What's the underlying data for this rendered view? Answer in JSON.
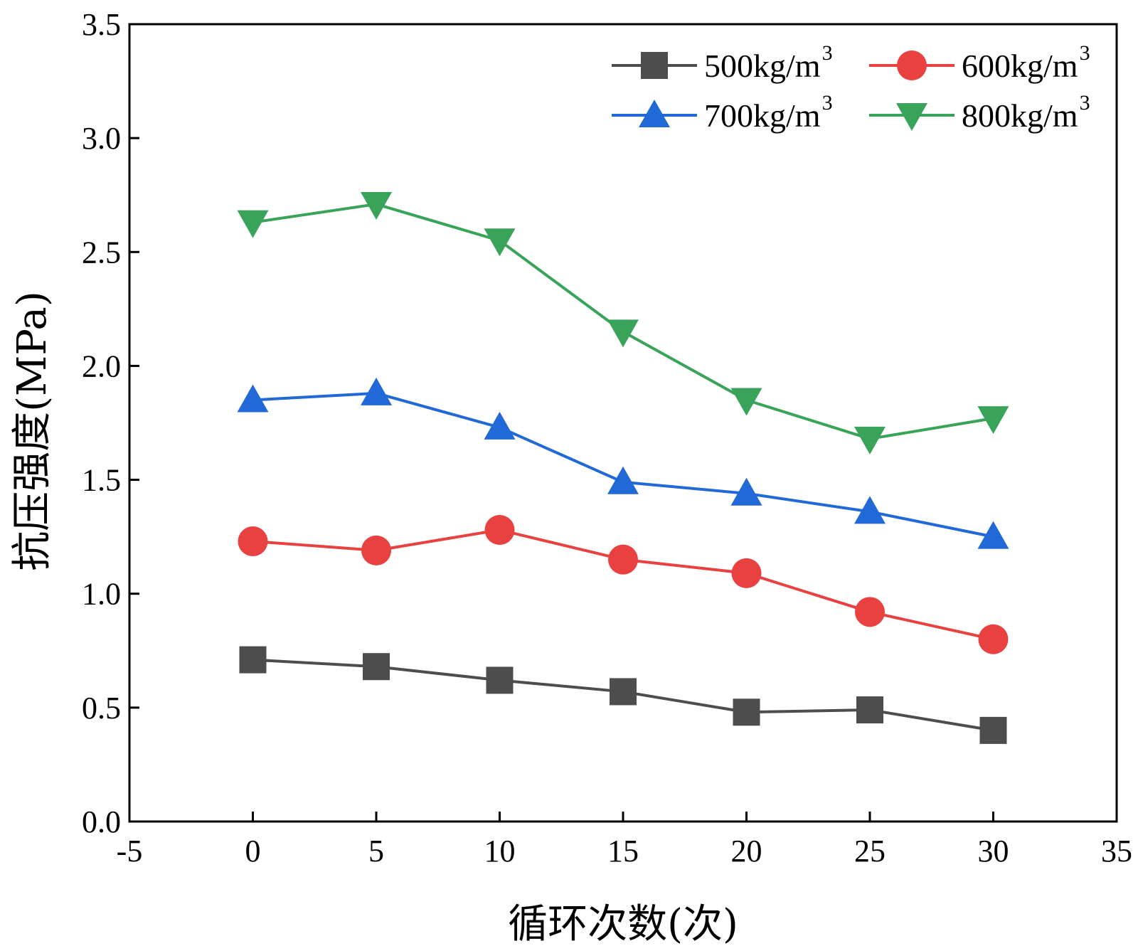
{
  "chart_data": {
    "type": "line",
    "title": "",
    "xlabel": "循环次数(次)",
    "ylabel": "抗压强度(MPa)",
    "xlim": [
      -5,
      35
    ],
    "ylim": [
      0,
      3.5
    ],
    "xticks": [
      -5,
      0,
      5,
      10,
      15,
      20,
      25,
      30,
      35
    ],
    "xtick_labels": [
      "-5",
      "0",
      "5",
      "10",
      "15",
      "20",
      "25",
      "30",
      "35"
    ],
    "yticks": [
      0,
      0.5,
      1.0,
      1.5,
      2.0,
      2.5,
      3.0,
      3.5
    ],
    "ytick_labels": [
      "0.0",
      "0.5",
      "1.0",
      "1.5",
      "2.0",
      "2.5",
      "3.0",
      "3.5"
    ],
    "grid": false,
    "legend_position": "top-right",
    "x": [
      0,
      5,
      10,
      15,
      20,
      25,
      30
    ],
    "series": [
      {
        "name": "500kg/m",
        "sup": "3",
        "color": "#4d4d4d",
        "marker": "square",
        "values": [
          0.71,
          0.68,
          0.62,
          0.57,
          0.48,
          0.49,
          0.4
        ]
      },
      {
        "name": "600kg/m",
        "sup": "3",
        "color": "#e8413f",
        "marker": "circle",
        "values": [
          1.23,
          1.19,
          1.28,
          1.15,
          1.09,
          0.92,
          0.8
        ]
      },
      {
        "name": "700kg/m",
        "sup": "3",
        "color": "#2169d6",
        "marker": "triangle-up",
        "values": [
          1.85,
          1.88,
          1.73,
          1.49,
          1.44,
          1.36,
          1.25
        ]
      },
      {
        "name": "800kg/m",
        "sup": "3",
        "color": "#3aa35a",
        "marker": "triangle-down",
        "values": [
          2.63,
          2.71,
          2.55,
          2.15,
          1.85,
          1.68,
          1.77
        ]
      }
    ]
  }
}
